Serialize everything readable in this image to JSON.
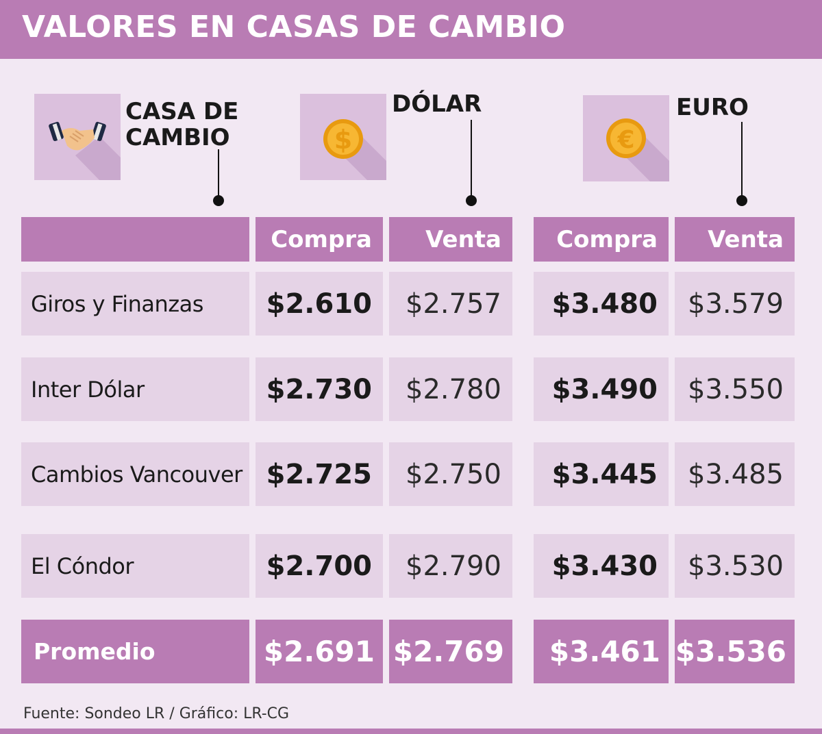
{
  "title": "VALORES EN CASAS DE CAMBIO",
  "columns": {
    "casa": "CASA DE\nCAMBIO",
    "casa_line1": "CASA DE",
    "casa_line2": "CAMBIO",
    "dolar": "DÓLAR",
    "euro": "EURO",
    "compra": "Compra",
    "venta": "Venta"
  },
  "icons": {
    "casa": "handshake-icon",
    "dolar": "dollar-coin-icon",
    "euro": "euro-coin-icon"
  },
  "colors": {
    "accent": "#b97cb4",
    "row_bg": "#e5d3e6",
    "page_bg": "#f2e8f3",
    "coin": "#f5a623"
  },
  "chart_data": {
    "type": "table",
    "title": "VALORES EN CASAS DE CAMBIO",
    "columns": [
      "CASA DE CAMBIO",
      "DÓLAR Compra",
      "DÓLAR Venta",
      "EURO Compra",
      "EURO Venta"
    ],
    "rows": [
      {
        "name": "Giros y Finanzas",
        "dolar_compra": "$2.610",
        "dolar_venta": "$2.757",
        "euro_compra": "$3.480",
        "euro_venta": "$3.579"
      },
      {
        "name": "Inter Dólar",
        "dolar_compra": "$2.730",
        "dolar_venta": "$2.780",
        "euro_compra": "$3.490",
        "euro_venta": "$3.550"
      },
      {
        "name": "Cambios Vancouver",
        "dolar_compra": "$2.725",
        "dolar_venta": "$2.750",
        "euro_compra": "$3.445",
        "euro_venta": "$3.485"
      },
      {
        "name": "El Cóndor",
        "dolar_compra": "$2.700",
        "dolar_venta": "$2.790",
        "euro_compra": "$3.430",
        "euro_venta": "$3.530"
      }
    ],
    "average": {
      "name": "Promedio",
      "dolar_compra": "$2.691",
      "dolar_venta": "$2.769",
      "euro_compra": "$3.461",
      "euro_venta": "$3.536"
    }
  },
  "source": "Fuente: Sondeo LR / Gráfico: LR-CG"
}
